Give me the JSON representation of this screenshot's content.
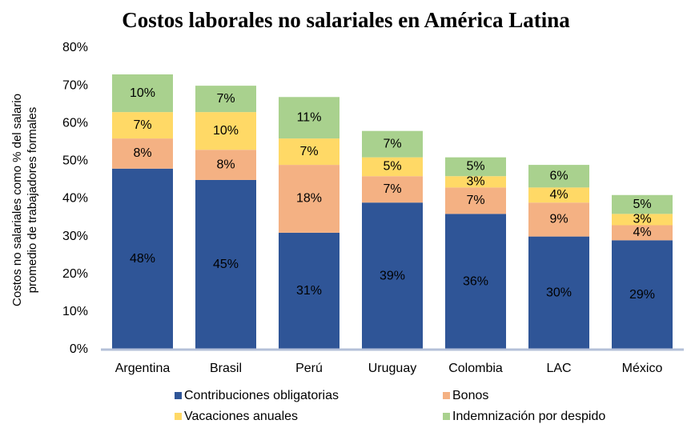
{
  "chart_data": {
    "type": "stacked_bar",
    "title": "Costos laborales no salariales en América Latina",
    "ylabel": [
      "Costos no salariales como % del salario",
      "promedio de trabajadores formales"
    ],
    "categories": [
      "Argentina",
      "Brasil",
      "Perú",
      "Uruguay",
      "Colombia",
      "LAC",
      "México"
    ],
    "series": [
      {
        "name": "Contribuciones obligatorias",
        "color": "#2f5597",
        "label_color": "#ffffff",
        "values": [
          48,
          45,
          31,
          39,
          36,
          30,
          29
        ],
        "value_labels": [
          "48%",
          "45%",
          "31%",
          "39%",
          "36%",
          "30%",
          "29%"
        ]
      },
      {
        "name": "Bonos",
        "color": "#f4b183",
        "label_color": "#000000",
        "values": [
          8,
          8,
          18,
          7,
          7,
          9,
          4
        ],
        "value_labels": [
          "8%",
          "8%",
          "18%",
          "7%",
          "7%",
          "9%",
          "4%"
        ]
      },
      {
        "name": "Vacaciones anuales",
        "color": "#ffd966",
        "label_color": "#000000",
        "values": [
          7,
          10,
          7,
          5,
          3,
          4,
          3
        ],
        "value_labels": [
          "7%",
          "10%",
          "7%",
          "5%",
          "3%",
          "4%",
          "3%"
        ]
      },
      {
        "name": "Indemnización por despido",
        "color": "#a9d18e",
        "label_color": "#000000",
        "values": [
          10,
          7,
          11,
          7,
          5,
          6,
          5
        ],
        "value_labels": [
          "10%",
          "7%",
          "11%",
          "7%",
          "5%",
          "6%",
          "5%"
        ]
      }
    ],
    "ylim": [
      0,
      80
    ],
    "yticks": [
      {
        "value": 0,
        "label": "0%"
      },
      {
        "value": 10,
        "label": "10%"
      },
      {
        "value": 20,
        "label": "20%"
      },
      {
        "value": 30,
        "label": "30%"
      },
      {
        "value": 40,
        "label": "40%"
      },
      {
        "value": 50,
        "label": "50%"
      },
      {
        "value": 60,
        "label": "60%"
      },
      {
        "value": 70,
        "label": "70%"
      },
      {
        "value": 80,
        "label": "80%"
      }
    ],
    "grid": false
  }
}
